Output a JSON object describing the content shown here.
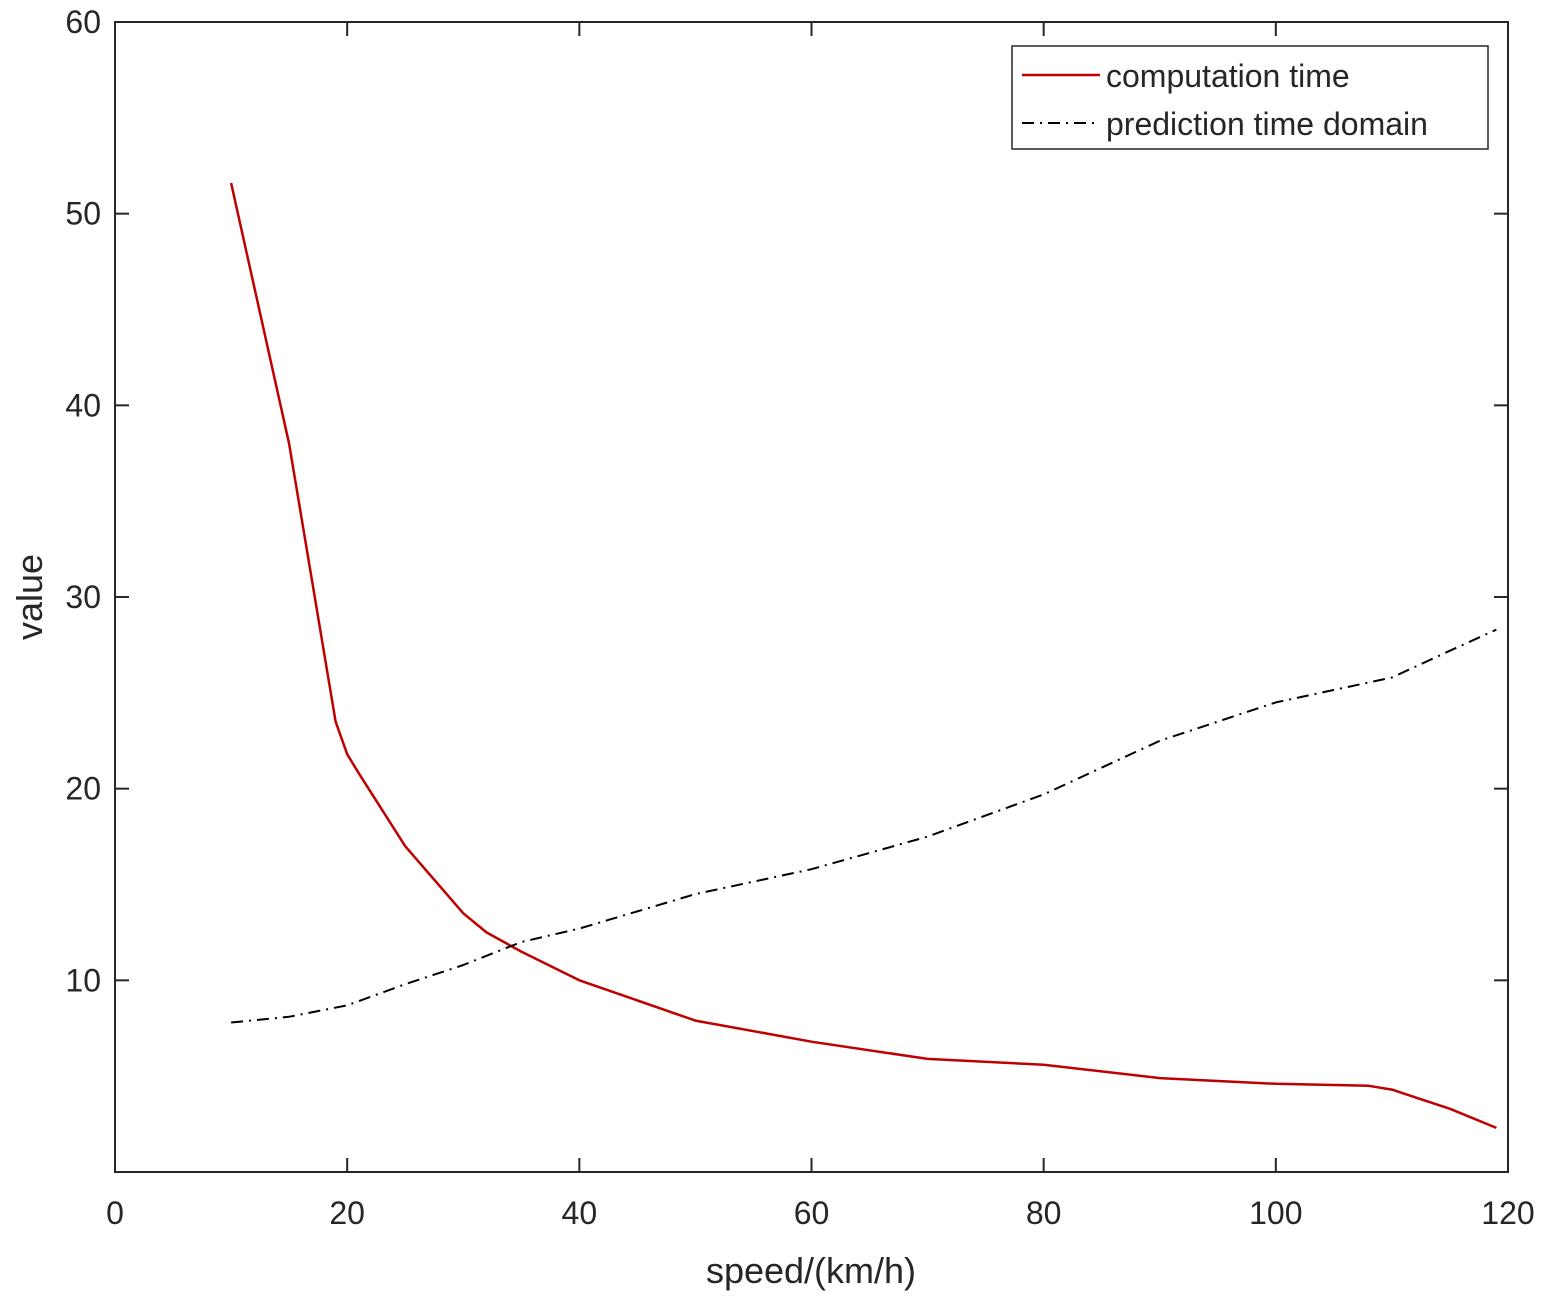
{
  "chart_data": {
    "type": "line",
    "title": "",
    "xlabel": "speed/(km/h)",
    "ylabel": "value",
    "xlim": [
      0,
      120
    ],
    "ylim": [
      0,
      60
    ],
    "xticks": [
      0,
      20,
      40,
      60,
      80,
      100,
      120
    ],
    "yticks": [
      10,
      20,
      30,
      40,
      50,
      60
    ],
    "xtick_labels": [
      "0",
      "20",
      "40",
      "60",
      "80",
      "100",
      "120"
    ],
    "ytick_labels": [
      "10",
      "20",
      "30",
      "40",
      "50",
      "60"
    ],
    "grid": false,
    "box": true,
    "legend_position": "top-right",
    "series": [
      {
        "name": "computation time",
        "color": "#c00000",
        "line_style": "solid",
        "x": [
          10,
          15,
          19,
          20,
          21,
          25,
          30,
          32,
          35,
          40,
          50,
          60,
          70,
          80,
          90,
          100,
          108,
          110,
          115,
          119
        ],
        "y": [
          51.6,
          38,
          23.5,
          21.8,
          20.8,
          17,
          13.5,
          12.5,
          11.5,
          10,
          7.9,
          6.8,
          5.9,
          5.6,
          4.9,
          4.6,
          4.5,
          4.3,
          3.3,
          2.3
        ]
      },
      {
        "name": "prediction time domain",
        "color": "#000000",
        "line_style": "dashdot",
        "x": [
          10,
          15,
          20,
          25,
          30,
          35,
          40,
          50,
          60,
          70,
          80,
          90,
          100,
          110,
          115,
          119
        ],
        "y": [
          7.8,
          8.1,
          8.7,
          9.8,
          10.8,
          12,
          12.7,
          14.5,
          15.8,
          17.5,
          19.7,
          22.5,
          24.5,
          25.8,
          27.2,
          28.3
        ]
      }
    ]
  }
}
